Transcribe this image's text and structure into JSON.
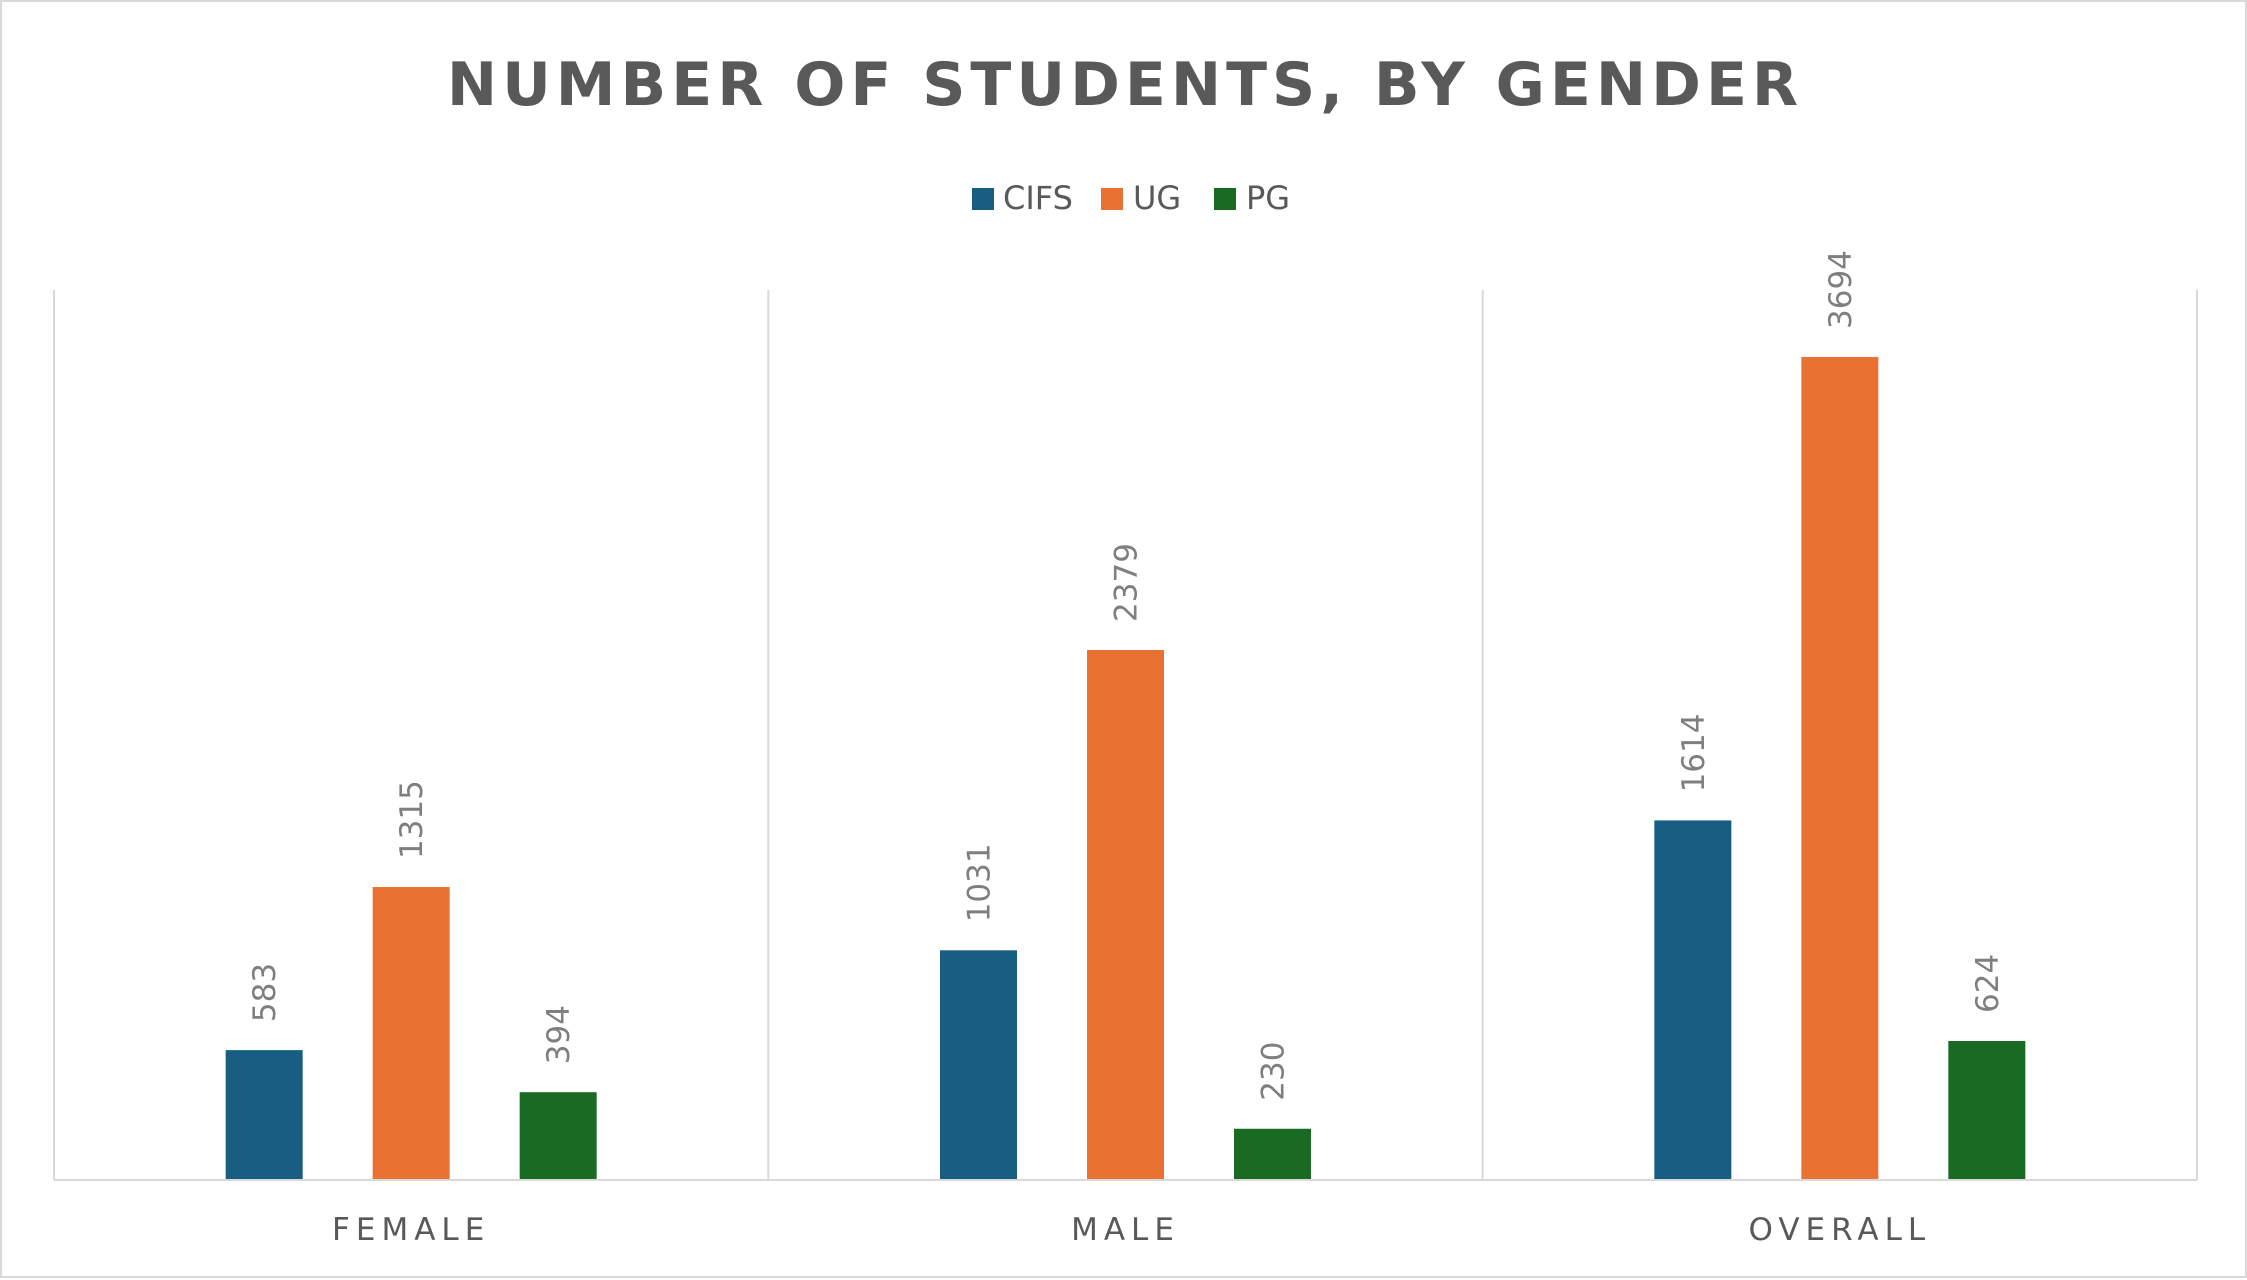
{
  "chart_data": {
    "type": "bar",
    "title": "NUMBER OF STUDENTS, BY GENDER",
    "categories": [
      "FEMALE",
      "MALE",
      "OVERALL"
    ],
    "series": [
      {
        "name": "CIFS",
        "color": "#175e82",
        "values": [
          583,
          1031,
          1614
        ]
      },
      {
        "name": "UG",
        "color": "#e97132",
        "values": [
          1315,
          2379,
          3694
        ]
      },
      {
        "name": "PG",
        "color": "#196b24",
        "values": [
          394,
          230,
          624
        ]
      }
    ],
    "ylim": [
      0,
      3694
    ],
    "legend_position": "top",
    "grid": "vertical-category-separators",
    "data_labels": true
  }
}
